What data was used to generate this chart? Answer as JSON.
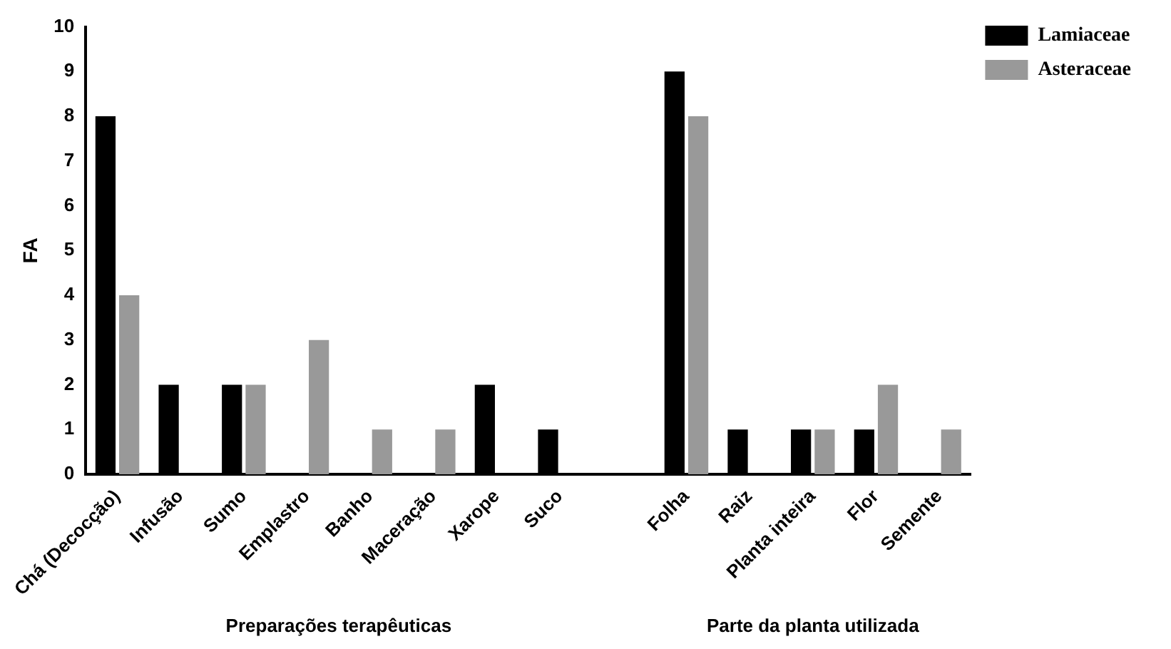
{
  "chart_data": {
    "type": "bar",
    "ylabel": "FA",
    "categories": [
      "Chá (Decocção)",
      "Infusão",
      "Sumo",
      "Emplastro",
      "Banho",
      "Maceração",
      "Xarope",
      "Suco",
      null,
      "Folha",
      "Raiz",
      "Planta inteira",
      "Flor",
      "Semente"
    ],
    "series": [
      {
        "name": "Lamiaceae",
        "color": "#000000",
        "values": [
          8,
          2,
          2,
          0,
          0,
          0,
          2,
          1,
          null,
          9,
          1,
          1,
          1,
          0
        ]
      },
      {
        "name": "Asteraceae",
        "color": "#999999",
        "values": [
          4,
          0,
          2,
          3,
          1,
          1,
          0,
          0,
          null,
          8,
          0,
          1,
          2,
          1
        ]
      }
    ],
    "ylim": [
      0,
      10
    ],
    "yticks": [
      0,
      1,
      2,
      3,
      4,
      5,
      6,
      7,
      8,
      9,
      10
    ],
    "grid": false,
    "legend": "top right",
    "annotations": [
      "Preparações terapêuticas",
      "Parte da planta utilizada"
    ]
  }
}
